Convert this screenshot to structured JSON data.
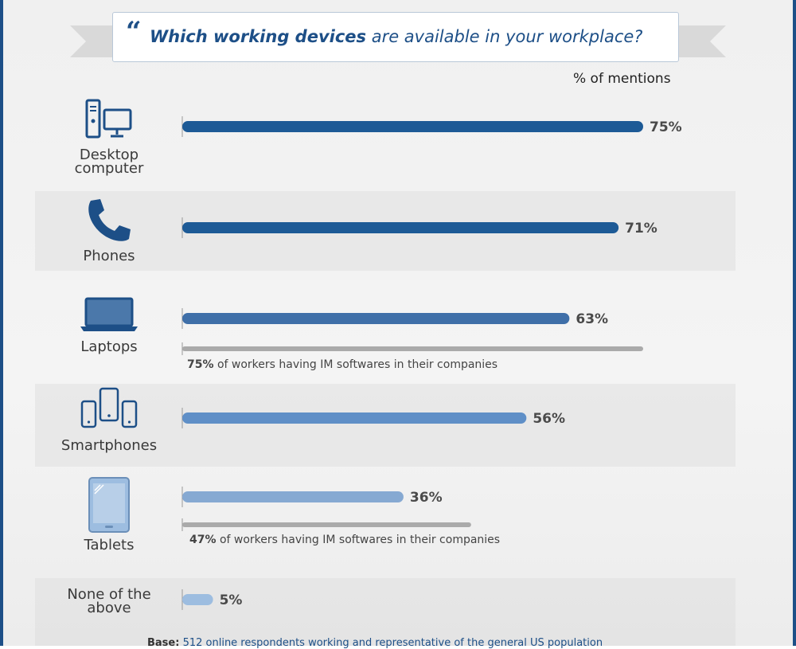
{
  "title": {
    "bold_part": "Which working devices",
    "rest": "are available in your workplace?"
  },
  "units_label": "% of mentions",
  "colors": {
    "dark_blue": "#1d5a96",
    "mid_blue": "#3f6fa8",
    "light_blue": "#5f8fc7",
    "pale_blue": "#86a9d2",
    "very_pale_blue": "#9dbde0",
    "grey": "#aaaaaa",
    "frame": "#1d4f87"
  },
  "chart_data": {
    "type": "bar",
    "orientation": "horizontal",
    "categories": [
      "Desktop computer",
      "Phones",
      "Laptops",
      "Smartphones",
      "Tablets",
      "None of the above"
    ],
    "values": [
      75,
      71,
      63,
      56,
      36,
      5
    ],
    "value_labels": [
      "75%",
      "71%",
      "63%",
      "56%",
      "36%",
      "5%"
    ],
    "unit": "% of mentions",
    "xlim": [
      0,
      75
    ],
    "secondary": [
      {
        "category": "Laptops",
        "value": 75,
        "label_bold": "75%",
        "label_rest": "of workers having IM softwares in their companies"
      },
      {
        "category": "Tablets",
        "value": 47,
        "label_bold": "47%",
        "label_rest": "of workers having IM softwares in their companies"
      }
    ]
  },
  "rows": [
    {
      "label_line1": "Desktop",
      "label_line2": "computer",
      "icon": "desktop-computer-icon"
    },
    {
      "label_line1": "Phones",
      "label_line2": "",
      "icon": "phone-icon"
    },
    {
      "label_line1": "Laptops",
      "label_line2": "",
      "icon": "laptop-icon"
    },
    {
      "label_line1": "Smartphones",
      "label_line2": "",
      "icon": "smartphones-icon"
    },
    {
      "label_line1": "Tablets",
      "label_line2": "",
      "icon": "tablet-icon"
    },
    {
      "label_line1": "None of the",
      "label_line2": "above",
      "icon": ""
    }
  ],
  "footer": {
    "bold": "Base:",
    "rest": "512 online respondents working and representative of the general US population"
  }
}
